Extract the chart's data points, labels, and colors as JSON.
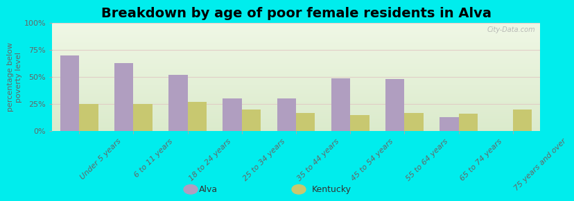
{
  "title": "Breakdown by age of poor female residents in Alva",
  "categories": [
    "Under 5 years",
    "6 to 11 years",
    "18 to 24 years",
    "25 to 34 years",
    "35 to 44 years",
    "45 to 54 years",
    "55 to 64 years",
    "65 to 74 years",
    "75 years and over"
  ],
  "alva_values": [
    70,
    63,
    52,
    30,
    30,
    49,
    48,
    13,
    0
  ],
  "kentucky_values": [
    25,
    25,
    27,
    20,
    17,
    15,
    17,
    16,
    20
  ],
  "alva_color": "#b09ec0",
  "kentucky_color": "#c8c870",
  "ylabel": "percentage below\npoverty level",
  "ylim": [
    0,
    100
  ],
  "yticks": [
    0,
    25,
    50,
    75,
    100
  ],
  "ytick_labels": [
    "0%",
    "25%",
    "50%",
    "75%",
    "100%"
  ],
  "background_color": "#00eded",
  "title_fontsize": 14,
  "axis_label_fontsize": 8,
  "tick_fontsize": 8,
  "legend_labels": [
    "Alva",
    "Kentucky"
  ],
  "bar_width": 0.35,
  "watermark": "City-Data.com"
}
